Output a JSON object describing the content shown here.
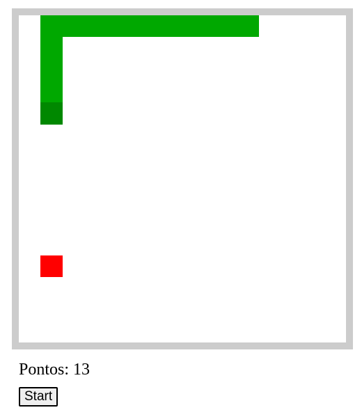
{
  "game": {
    "grid_size": 15,
    "colors": {
      "board_border": "#cccccc",
      "board_background": "#ffffff",
      "snake_body": "#00a800",
      "snake_head": "#008800",
      "food": "#ff0000"
    },
    "snake": {
      "head": [
        1,
        4
      ],
      "body": [
        [
          1,
          3
        ],
        [
          1,
          2
        ],
        [
          1,
          1
        ],
        [
          1,
          0
        ],
        [
          2,
          0
        ],
        [
          3,
          0
        ],
        [
          4,
          0
        ],
        [
          5,
          0
        ],
        [
          6,
          0
        ],
        [
          7,
          0
        ],
        [
          8,
          0
        ],
        [
          9,
          0
        ],
        [
          10,
          0
        ]
      ]
    },
    "food": [
      1,
      11
    ]
  },
  "score": {
    "label": "Pontos:",
    "value": "13",
    "text": "Pontos: 13"
  },
  "controls": {
    "start_label": "Start"
  }
}
